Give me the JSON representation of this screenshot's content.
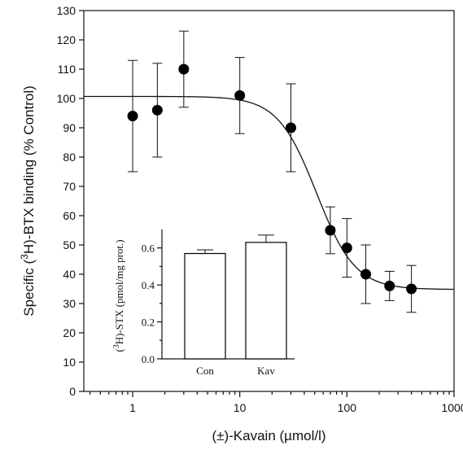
{
  "chart_data": [
    {
      "type": "scatter",
      "title": "",
      "xlabel": "(±)-Kavain (µmol/l)",
      "ylabel_parts": [
        "Specific (",
        "3",
        "H)-BTX binding (% Control)"
      ],
      "xscale": "log",
      "xlim": [
        0.35,
        1000
      ],
      "ylim": [
        0,
        130
      ],
      "x_ticks": [
        1,
        10,
        100,
        1000
      ],
      "x_tick_labels": [
        "1",
        "10",
        "100",
        "1000"
      ],
      "y_ticks": [
        0,
        10,
        20,
        30,
        40,
        50,
        60,
        70,
        80,
        90,
        100,
        110,
        120,
        130
      ],
      "y_tick_labels": [
        "0",
        "10",
        "20",
        "30",
        "40",
        "50",
        "60",
        "70",
        "80",
        "90",
        "100",
        "110",
        "120",
        "130"
      ],
      "grid": false,
      "frame": "box",
      "series": [
        {
          "x": [
            1,
            1.7,
            3,
            10,
            30,
            70,
            100,
            150,
            250,
            400
          ],
          "y": [
            94,
            96,
            110,
            101,
            90,
            55,
            49,
            40,
            36,
            35
          ],
          "y_error": [
            19,
            16,
            13,
            13,
            15,
            8,
            10,
            10,
            5,
            8
          ],
          "marker": "filled-circle",
          "color": "#000000"
        }
      ],
      "fit_curve": {
        "model": "sigmoid",
        "top": 100.7,
        "bottom": 34.8,
        "ic50": 52,
        "hill_slope": 2.4,
        "x_range": [
          0.35,
          1000
        ]
      }
    },
    {
      "type": "bar",
      "position": "inset-bottom-left",
      "categories": [
        "Con",
        "Kav"
      ],
      "values": [
        0.57,
        0.63
      ],
      "errors": [
        0.02,
        0.04
      ],
      "ylabel_parts": [
        "(",
        "3",
        "H)-STX (pmol/mg prot.)"
      ],
      "ylim": [
        0,
        0.7
      ],
      "y_ticks": [
        0.0,
        0.2,
        0.4,
        0.6
      ],
      "y_tick_labels": [
        "0.0",
        "0.2",
        "0.4",
        "0.6"
      ],
      "bar_fill": "#ffffff",
      "bar_stroke": "#000000"
    }
  ]
}
